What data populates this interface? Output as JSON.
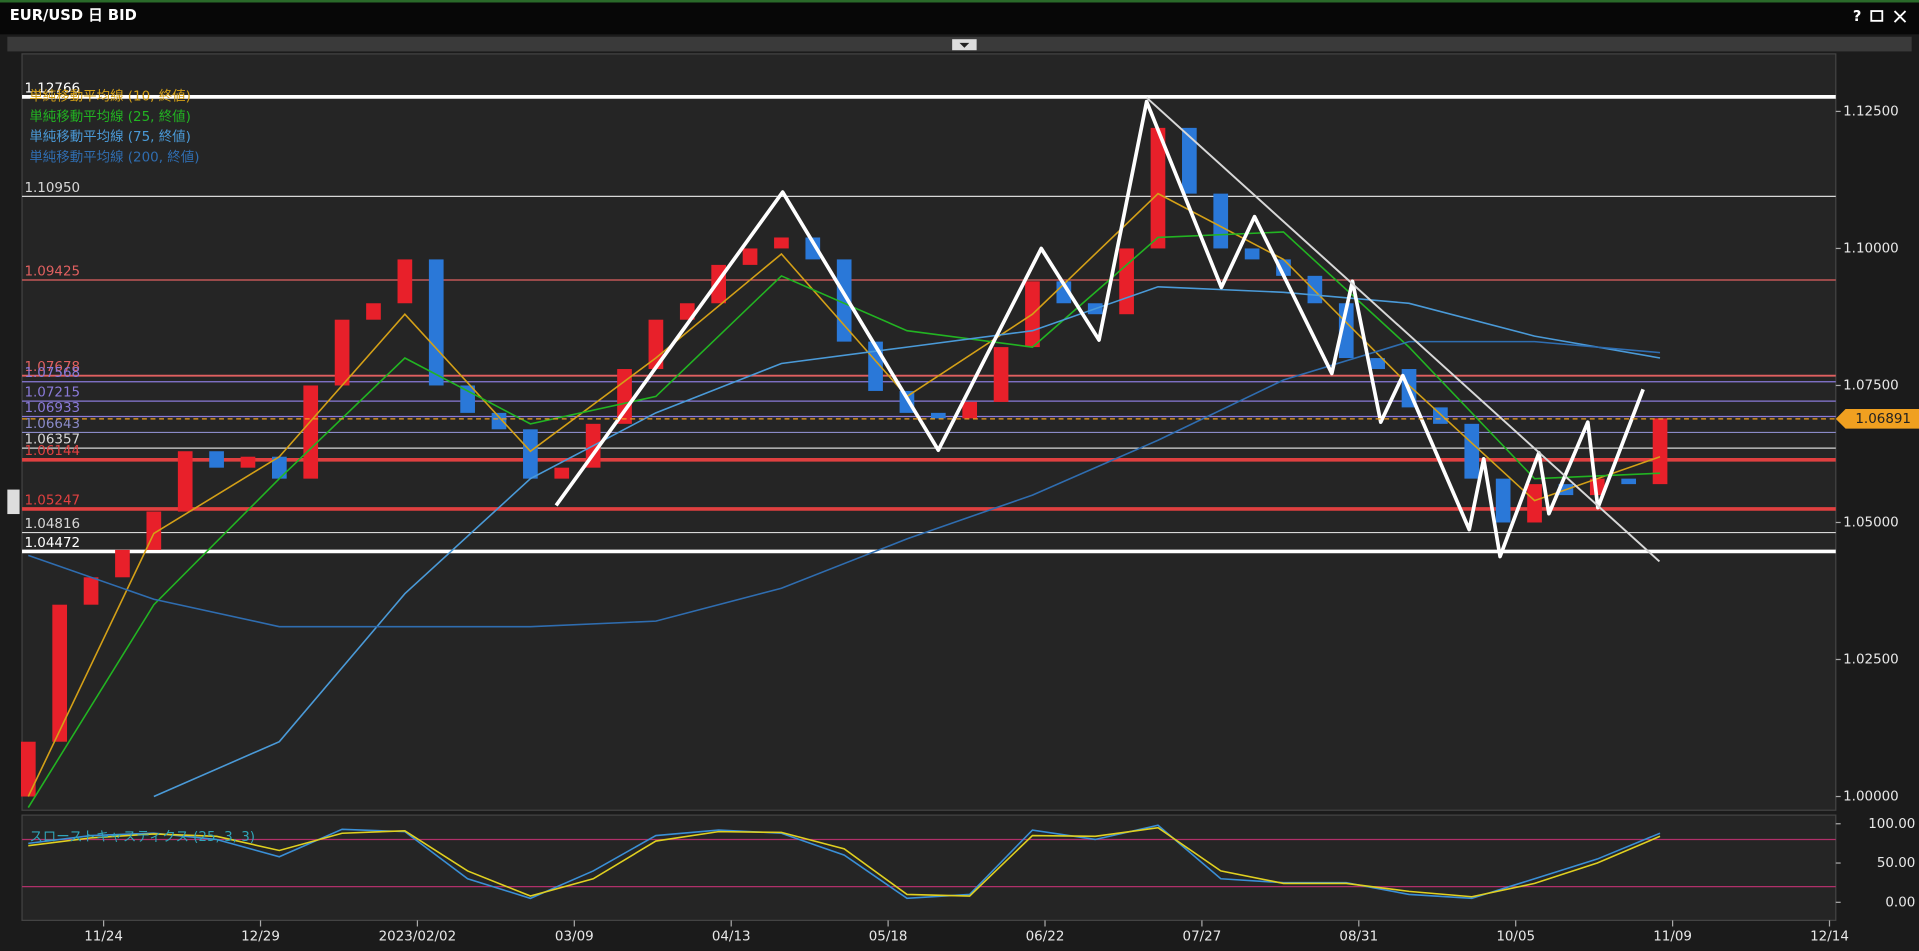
{
  "window": {
    "title": "EUR/USD 日 BID",
    "help": "?"
  },
  "chart_data": [
    {
      "type": "candlestick",
      "x": [
        -12,
        -7,
        -2,
        3,
        8,
        13,
        18,
        23,
        28,
        33,
        38,
        43,
        48,
        53,
        58,
        63,
        68,
        73,
        78,
        83,
        88,
        93,
        98,
        103,
        108,
        113,
        118,
        123,
        128,
        133,
        138,
        143,
        148,
        153,
        158,
        163,
        168,
        173,
        178,
        183,
        188,
        193,
        198,
        203,
        208,
        213,
        218,
        223,
        228,
        233,
        238,
        243,
        248
      ],
      "open": [
        1.0,
        1.01,
        1.035,
        1.04,
        1.045,
        1.052,
        1.063,
        1.06,
        1.062,
        1.058,
        1.075,
        1.087,
        1.09,
        1.098,
        1.075,
        1.07,
        1.067,
        1.058,
        1.06,
        1.068,
        1.078,
        1.087,
        1.09,
        1.097,
        1.1,
        1.102,
        1.098,
        1.083,
        1.074,
        1.07,
        1.069,
        1.072,
        1.082,
        1.094,
        1.09,
        1.088,
        1.1,
        1.122,
        1.11,
        1.1,
        1.098,
        1.095,
        1.09,
        1.08,
        1.078,
        1.071,
        1.068,
        1.058,
        1.05,
        1.057,
        1.055,
        1.058,
        1.057
      ],
      "close": [
        1.01,
        1.035,
        1.04,
        1.045,
        1.052,
        1.063,
        1.06,
        1.062,
        1.058,
        1.075,
        1.087,
        1.09,
        1.098,
        1.075,
        1.07,
        1.067,
        1.058,
        1.06,
        1.068,
        1.078,
        1.087,
        1.09,
        1.097,
        1.1,
        1.102,
        1.098,
        1.083,
        1.074,
        1.07,
        1.069,
        1.072,
        1.082,
        1.094,
        1.09,
        1.088,
        1.1,
        1.122,
        1.11,
        1.1,
        1.098,
        1.095,
        1.09,
        1.08,
        1.078,
        1.071,
        1.068,
        1.058,
        1.05,
        1.057,
        1.055,
        1.058,
        1.057,
        1.069
      ],
      "up_color": "#e8202a",
      "down_color": "#2a78d8",
      "xlim": [
        -13,
        276
      ],
      "xticks": [
        {
          "value": 0,
          "label": "11/24"
        },
        {
          "value": 25,
          "label": "12/29"
        },
        {
          "value": 50,
          "label": "2023/02/02"
        },
        {
          "value": 75,
          "label": "03/09"
        },
        {
          "value": 100,
          "label": "04/13"
        },
        {
          "value": 125,
          "label": "05/18"
        },
        {
          "value": 150,
          "label": "06/22"
        },
        {
          "value": 175,
          "label": "07/27"
        },
        {
          "value": 200,
          "label": "08/31"
        },
        {
          "value": 225,
          "label": "10/05"
        },
        {
          "value": 250,
          "label": "11/09"
        },
        {
          "value": 275,
          "label": "12/14"
        }
      ],
      "ylim": [
        0.9975,
        1.1355
      ],
      "yticks": [
        {
          "value": 1,
          "label": "1.00000"
        },
        {
          "value": 1.025,
          "label": "1.02500"
        },
        {
          "value": 1.05,
          "label": "1.05000"
        },
        {
          "value": 1.075,
          "label": "1.07500"
        },
        {
          "value": 1.1,
          "label": "1.10000"
        },
        {
          "value": 1.125,
          "label": "1.12500"
        }
      ],
      "last_price": {
        "value": 1.06891,
        "color": "#f0a020"
      },
      "levels": [
        {
          "value": 1.12766,
          "color": "#ffffff",
          "width": 3
        },
        {
          "value": 1.1095,
          "label": "1.10950",
          "color": "#d8d8d8",
          "width": 1
        },
        {
          "value": 1.09425,
          "color": "#e06060",
          "width": 1
        },
        {
          "value": 1.07678,
          "color": "#e06060",
          "width": 1.5
        },
        {
          "value": 1.07568,
          "color": "#8a7ad8",
          "width": 1
        },
        {
          "value": 1.07215,
          "color": "#8a7ad8",
          "width": 1
        },
        {
          "value": 1.06933,
          "color": "#8a7ad8",
          "width": 1
        },
        {
          "value": 1.06643,
          "color": "#8a8ac8",
          "width": 1
        },
        {
          "value": 1.06357,
          "color": "#d8d8d8",
          "width": 1
        },
        {
          "value": 1.06144,
          "color": "#e04040",
          "width": 3
        },
        {
          "value": 1.05247,
          "color": "#e04040",
          "width": 3
        },
        {
          "value": 1.04816,
          "color": "#d8d8d8",
          "width": 1
        },
        {
          "value": 1.04472,
          "color": "#ffffff",
          "width": 3
        }
      ],
      "series": [
        {
          "name": "単純移動平均線 (10, 終値)",
          "color": "#d4a017",
          "x": [
            -12,
            8,
            28,
            48,
            68,
            88,
            108,
            128,
            148,
            168,
            188,
            208,
            228,
            248
          ],
          "values": [
            1.0,
            1.048,
            1.062,
            1.088,
            1.063,
            1.08,
            1.099,
            1.073,
            1.088,
            1.11,
            1.098,
            1.075,
            1.054,
            1.062
          ]
        },
        {
          "name": "単純移動平均線 (25, 終値)",
          "color": "#22b422",
          "x": [
            -12,
            8,
            28,
            48,
            68,
            88,
            108,
            128,
            148,
            168,
            188,
            208,
            228,
            248
          ],
          "values": [
            0.998,
            1.035,
            1.058,
            1.08,
            1.068,
            1.073,
            1.095,
            1.085,
            1.082,
            1.102,
            1.103,
            1.082,
            1.058,
            1.059
          ]
        },
        {
          "name": "単純移動平均線 (75, 終値)",
          "color": "#4a9ad8",
          "x": [
            -12,
            8,
            28,
            48,
            68,
            88,
            108,
            128,
            148,
            168,
            188,
            208,
            228,
            248
          ],
          "values": [
            null,
            1.0,
            1.01,
            1.037,
            1.058,
            1.07,
            1.079,
            1.082,
            1.085,
            1.093,
            1.092,
            1.09,
            1.084,
            1.08
          ]
        },
        {
          "name": "単純移動平均線 (200, 終値)",
          "color": "#2f6db0",
          "x": [
            -12,
            8,
            28,
            48,
            68,
            88,
            108,
            128,
            148,
            168,
            188,
            208,
            228,
            248
          ],
          "values": [
            1.044,
            1.036,
            1.031,
            1.031,
            1.031,
            1.032,
            1.038,
            1.047,
            1.055,
            1.065,
            1.076,
            1.083,
            1.083,
            1.081
          ]
        }
      ],
      "annotations": [
        {
          "color": "#ffffff",
          "x": [
            72.1,
            108.2,
            133.0,
            149.4,
            158.6,
            166.2,
            178.1,
            183.4,
            195.7,
            199.0,
            203.5,
            207.0,
            217.6,
            219.9,
            222.5,
            228.7,
            230.3,
            236.5,
            238.1,
            245.3
          ],
          "y": [
            1.0531,
            1.1103,
            1.0632,
            1.1,
            1.0833,
            1.1268,
            1.0929,
            1.1058,
            1.0772,
            1.094,
            1.0683,
            1.0768,
            1.0487,
            1.0616,
            1.0438,
            1.0627,
            1.0516,
            1.0683,
            1.0527,
            1.0743
          ]
        },
        {
          "color": "#d8d8d8",
          "x": [
            166.2,
            247.9
          ],
          "y": [
            1.1275,
            1.0429
          ]
        }
      ]
    },
    {
      "type": "line",
      "title": "スローストキャスティクス (25, 3, 3)",
      "title_color": "#2fa4b8",
      "xlim": [
        -13,
        276
      ],
      "ylim": [
        -23,
        111
      ],
      "yticks": [
        {
          "value": 0,
          "label": "0.00"
        },
        {
          "value": 50,
          "label": "50.00"
        },
        {
          "value": 100,
          "label": "100.00"
        }
      ],
      "hlines": [
        20,
        80
      ],
      "hline_color": "#b0306a",
      "series": [
        {
          "color": "#3a8fd6",
          "x": [
            -12,
            -2,
            8,
            18,
            28,
            38,
            48,
            58,
            68,
            78,
            88,
            98,
            108,
            118,
            128,
            138,
            148,
            158,
            168,
            178,
            188,
            198,
            208,
            218,
            228,
            238,
            248
          ],
          "values": [
            75,
            85,
            88,
            80,
            58,
            93,
            90,
            30,
            5,
            40,
            85,
            92,
            88,
            60,
            5,
            10,
            92,
            80,
            98,
            30,
            25,
            25,
            10,
            5,
            30,
            55,
            88
          ]
        },
        {
          "color": "#e0d020",
          "x": [
            -12,
            -2,
            8,
            18,
            28,
            38,
            48,
            58,
            68,
            78,
            88,
            98,
            108,
            118,
            128,
            138,
            148,
            158,
            168,
            178,
            188,
            198,
            208,
            218,
            228,
            238,
            248
          ],
          "values": [
            72,
            82,
            87,
            84,
            66,
            88,
            91,
            40,
            8,
            30,
            78,
            90,
            89,
            68,
            10,
            8,
            85,
            84,
            95,
            40,
            24,
            24,
            14,
            7,
            24,
            50,
            84
          ]
        }
      ]
    }
  ]
}
